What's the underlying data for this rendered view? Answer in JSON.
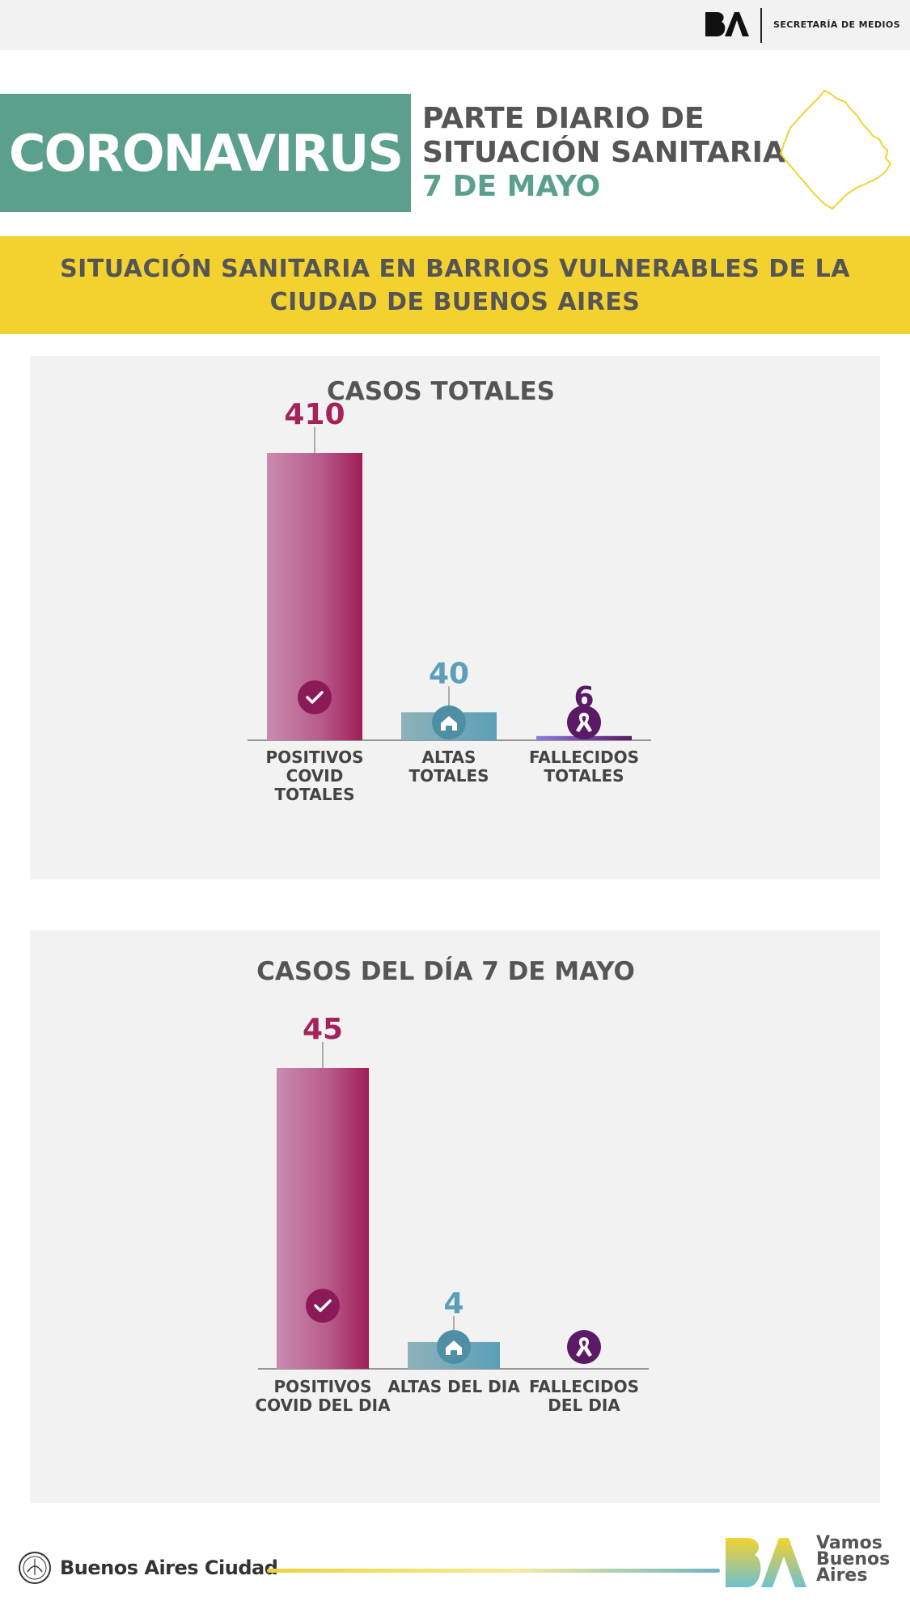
{
  "header": {
    "secretaria": "SECRETARÍA DE MEDIOS",
    "coronavirus": "CORONAVIRUS",
    "parte_line1": "PARTE DIARIO DE",
    "parte_line2": "SITUACIÓN SANITARIA",
    "date": "7 DE MAYO"
  },
  "banner": {
    "text": "SITUACIÓN SANITARIA EN BARRIOS VULNERABLES DE LA CIUDAD DE BUENOS AIRES"
  },
  "colors": {
    "green": "#5aa08c",
    "yellow": "#f3d230",
    "magenta": "#a3235a",
    "teal": "#5b9fb8",
    "purple": "#5a1a66"
  },
  "chart_data": [
    {
      "type": "bar",
      "title": "CASOS TOTALES",
      "categories": [
        "POSITIVOS\nCOVID\nTOTALES",
        "ALTAS\nTOTALES",
        "FALLECIDOS\nTOTALES"
      ],
      "values": [
        410,
        40,
        6
      ],
      "value_labels": [
        "410",
        "40",
        "6"
      ],
      "icons": [
        "check-icon",
        "house-icon",
        "ribbon-icon"
      ],
      "ylim": [
        0,
        410
      ],
      "grid": false
    },
    {
      "type": "bar",
      "title": "CASOS DEL DÍA 7 DE MAYO",
      "categories": [
        "POSITIVOS\nCOVID DEL DIA",
        "ALTAS DEL DIA",
        "FALLECIDOS\nDEL DIA"
      ],
      "values": [
        45,
        4,
        0
      ],
      "value_labels": [
        "45",
        "4",
        ""
      ],
      "icons": [
        "check-icon",
        "house-icon",
        "ribbon-icon"
      ],
      "ylim": [
        0,
        45
      ],
      "grid": false
    }
  ],
  "footer": {
    "city": "Buenos Aires Ciudad",
    "vamos": "Vamos\nBuenos\nAires"
  }
}
